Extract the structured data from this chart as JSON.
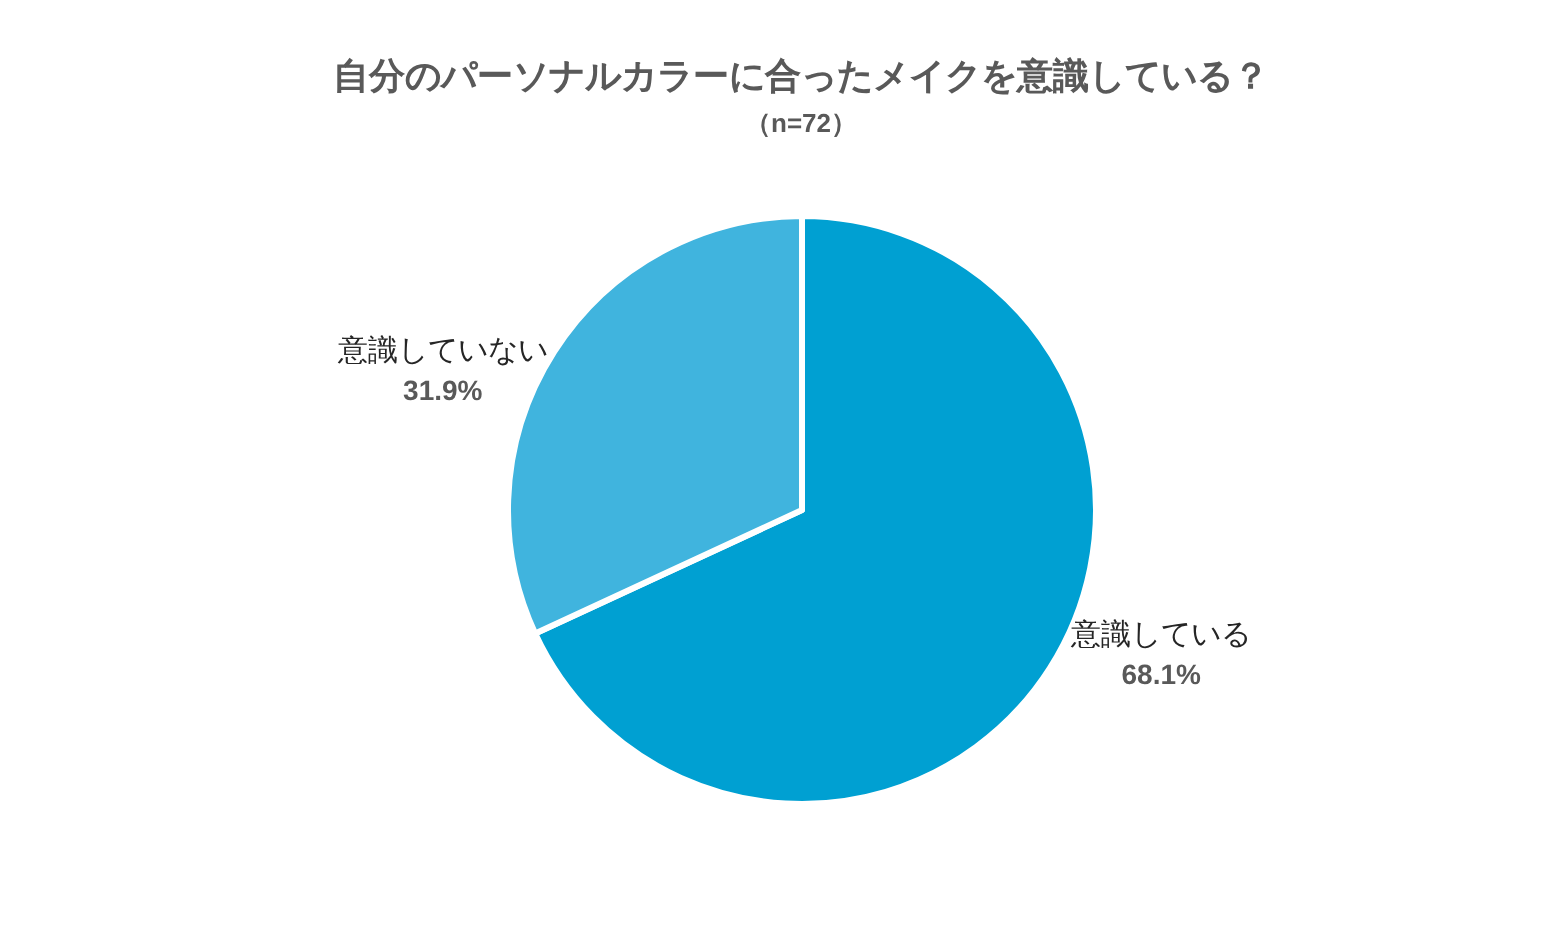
{
  "chart_data": {
    "type": "pie",
    "title": "自分のパーソナルカラーに合ったメイクを意識している？",
    "subtitle": "（n=72）",
    "categories": [
      "意識している",
      "意識していない"
    ],
    "values": [
      68.1,
      31.9
    ],
    "colors": [
      "#00a0d2",
      "#40b4de"
    ],
    "value_labels": [
      "68.1%",
      "31.9%"
    ]
  }
}
